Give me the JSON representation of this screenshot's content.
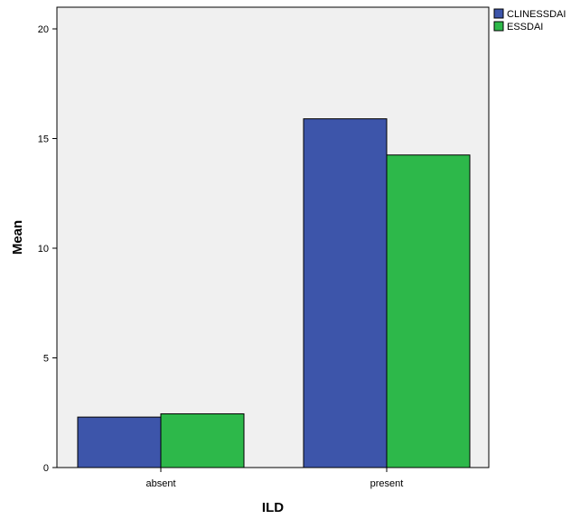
{
  "chart_data": {
    "type": "bar",
    "categories": [
      "absent",
      "present"
    ],
    "series": [
      {
        "name": "CLINESSDAI",
        "values": [
          2.3,
          15.9
        ],
        "color": "#3d55aa"
      },
      {
        "name": "ESSDAI",
        "values": [
          2.45,
          14.25
        ],
        "color": "#2db84a"
      }
    ],
    "xlabel": "ILD",
    "ylabel": "Mean",
    "ylim": [
      0,
      21
    ],
    "yticks": [
      0,
      5,
      10,
      15,
      20
    ],
    "grid": false,
    "legend_position": "top-right",
    "plot_background": "#f0f0f0"
  }
}
